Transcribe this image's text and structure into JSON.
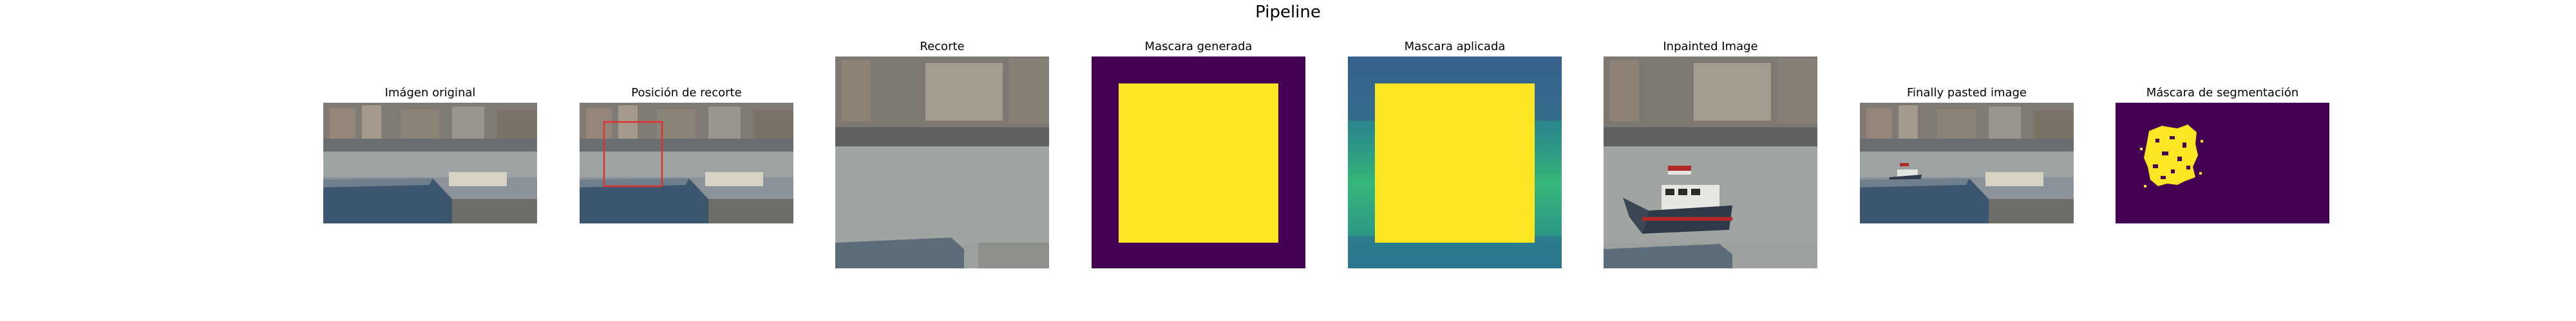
{
  "figure": {
    "title": "Pipeline",
    "panels": [
      {
        "id": "original",
        "title": "Imágen original",
        "icon": "harbor-scene-image"
      },
      {
        "id": "crop-position",
        "title": "Posición de recorte",
        "icon": "harbor-scene-with-crop-box-image",
        "crop_box_color": "#e03030"
      },
      {
        "id": "crop",
        "title": "Recorte",
        "icon": "cropped-water-image"
      },
      {
        "id": "generated-mask",
        "title": "Mascara generada",
        "icon": "mask-image",
        "colors": {
          "background": "#440154",
          "mask": "#fde725"
        }
      },
      {
        "id": "applied-mask",
        "title": "Mascara aplicada",
        "icon": "viridis-mask-image",
        "colors": {
          "background": "#2fa684",
          "mask": "#fde725"
        }
      },
      {
        "id": "inpainted",
        "title": "Inpainted Image",
        "icon": "inpainted-boat-image"
      },
      {
        "id": "pasted",
        "title": "Finally pasted image",
        "icon": "harbor-scene-with-boat-image"
      },
      {
        "id": "segmentation",
        "title": "Máscara de segmentación",
        "icon": "segmentation-mask-image",
        "colors": {
          "background": "#440154",
          "mask": "#fde725"
        }
      }
    ]
  }
}
